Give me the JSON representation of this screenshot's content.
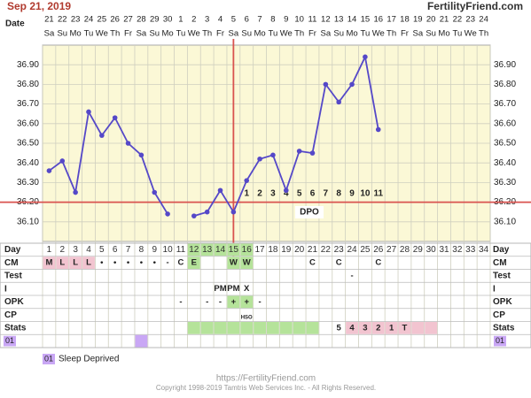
{
  "header": {
    "date": "Sep 21, 2019",
    "site": "FertilityFriend.com"
  },
  "chart_data": {
    "type": "line",
    "date_label": "Date",
    "dates": [
      21,
      22,
      23,
      24,
      25,
      26,
      27,
      28,
      29,
      30,
      1,
      2,
      3,
      4,
      5,
      6,
      7,
      8,
      9,
      10,
      11,
      12,
      13,
      14,
      15,
      16,
      17,
      18,
      19,
      20,
      21,
      22,
      23,
      24
    ],
    "weekdays": [
      "Sa",
      "Su",
      "Mo",
      "Tu",
      "We",
      "Th",
      "Fr",
      "Sa",
      "Su",
      "Mo",
      "Tu",
      "We",
      "Th",
      "Fr",
      "Sa",
      "Su",
      "Mo",
      "Tu",
      "We",
      "Th",
      "Fr",
      "Sa",
      "Su",
      "Mo",
      "Tu",
      "We",
      "Th",
      "Fr",
      "Sa",
      "Su",
      "Mo",
      "Tu",
      "We",
      "Th"
    ],
    "series": [
      {
        "color": "#5548c8",
        "values": [
          36.36,
          36.41,
          36.25,
          36.66,
          36.54,
          36.63,
          36.5,
          36.44,
          36.25,
          36.14,
          null,
          36.13,
          36.15,
          36.26,
          36.15,
          36.31,
          36.42,
          36.44,
          36.26,
          36.46,
          36.45,
          36.8,
          36.71,
          36.8,
          36.94,
          36.57,
          null,
          null,
          null,
          null,
          null,
          null,
          null,
          null
        ]
      }
    ],
    "ylim": [
      36.0,
      37.0
    ],
    "yticks": [
      {
        "value": 36.1,
        "label": "36.10"
      },
      {
        "value": 36.2,
        "label": "36.20"
      },
      {
        "value": 36.3,
        "label": "36.30"
      },
      {
        "value": 36.4,
        "label": "36.40"
      },
      {
        "value": 36.5,
        "label": "36.50"
      },
      {
        "value": 36.6,
        "label": "36.60"
      },
      {
        "value": 36.7,
        "label": "36.70"
      },
      {
        "value": 36.8,
        "label": "36.80"
      },
      {
        "value": 36.9,
        "label": "36.90"
      }
    ],
    "coverline": 36.2,
    "ovulation_day": 15,
    "dpo": [
      null,
      null,
      null,
      null,
      null,
      null,
      null,
      null,
      null,
      null,
      null,
      null,
      null,
      null,
      null,
      1,
      2,
      3,
      4,
      5,
      6,
      7,
      8,
      9,
      10,
      11,
      null,
      null,
      null,
      null,
      null,
      null,
      null,
      null
    ],
    "dpo_title": "DPO"
  },
  "table": {
    "rows": [
      {
        "label": "Day",
        "cells": [
          1,
          2,
          3,
          4,
          5,
          6,
          7,
          8,
          9,
          10,
          11,
          12,
          13,
          14,
          15,
          16,
          17,
          18,
          19,
          20,
          21,
          22,
          23,
          24,
          25,
          26,
          27,
          28,
          29,
          30,
          31,
          32,
          33,
          34
        ],
        "fills": [
          null,
          null,
          null,
          null,
          null,
          null,
          null,
          null,
          null,
          null,
          null,
          "#b5e39a",
          "#b5e39a",
          "#b5e39a",
          "#b5e39a",
          "#b5e39a",
          null,
          null,
          null,
          null,
          null,
          null,
          null,
          null,
          null,
          null,
          null,
          null,
          null,
          null,
          null,
          null,
          null,
          null
        ]
      },
      {
        "label": "CM",
        "cells": [
          "M",
          "L",
          "L",
          "L",
          "•",
          "•",
          "•",
          "•",
          "•",
          "-",
          "C",
          "E",
          null,
          null,
          "W",
          "W",
          null,
          null,
          null,
          null,
          "C",
          null,
          "C",
          null,
          null,
          "C",
          null,
          null,
          null,
          null,
          null,
          null,
          null,
          null
        ],
        "fills": [
          "#f2c4d0",
          "#f2c4d0",
          "#f2c4d0",
          "#f2c4d0",
          null,
          null,
          null,
          null,
          null,
          null,
          null,
          "#b5e39a",
          null,
          null,
          "#b5e39a",
          "#b5e39a",
          null,
          null,
          null,
          null,
          null,
          null,
          null,
          null,
          null,
          null,
          null,
          null,
          null,
          null,
          null,
          null,
          null,
          null
        ]
      },
      {
        "label": "Test",
        "cells": [
          null,
          null,
          null,
          null,
          null,
          null,
          null,
          null,
          null,
          null,
          null,
          null,
          null,
          null,
          null,
          null,
          null,
          null,
          null,
          null,
          null,
          null,
          null,
          "-",
          null,
          null,
          null,
          null,
          null,
          null,
          null,
          null,
          null,
          null
        ]
      },
      {
        "label": "I",
        "cells": [
          null,
          null,
          null,
          null,
          null,
          null,
          null,
          null,
          null,
          null,
          null,
          null,
          null,
          "PM",
          "PM",
          "X",
          null,
          null,
          null,
          null,
          null,
          null,
          null,
          null,
          null,
          null,
          null,
          null,
          null,
          null,
          null,
          null,
          null,
          null
        ]
      },
      {
        "label": "OPK",
        "cells": [
          null,
          null,
          null,
          null,
          null,
          null,
          null,
          null,
          null,
          null,
          "-",
          null,
          "-",
          "-",
          "+",
          "+",
          "-",
          null,
          null,
          null,
          null,
          null,
          null,
          null,
          null,
          null,
          null,
          null,
          null,
          null,
          null,
          null,
          null,
          null
        ],
        "fills": [
          null,
          null,
          null,
          null,
          null,
          null,
          null,
          null,
          null,
          null,
          null,
          null,
          null,
          null,
          "#b5e39a",
          "#b5e39a",
          null,
          null,
          null,
          null,
          null,
          null,
          null,
          null,
          null,
          null,
          null,
          null,
          null,
          null,
          null,
          null,
          null,
          null
        ]
      },
      {
        "label": "CP",
        "cells": [
          null,
          null,
          null,
          null,
          null,
          null,
          null,
          null,
          null,
          null,
          null,
          null,
          null,
          null,
          null,
          "HSO",
          null,
          null,
          null,
          null,
          null,
          null,
          null,
          null,
          null,
          null,
          null,
          null,
          null,
          null,
          null,
          null,
          null,
          null
        ]
      },
      {
        "label": "Stats",
        "cells": [
          null,
          null,
          null,
          null,
          null,
          null,
          null,
          null,
          null,
          null,
          null,
          null,
          null,
          null,
          null,
          null,
          null,
          null,
          null,
          null,
          null,
          null,
          "5",
          "4",
          "3",
          "2",
          "1",
          "T",
          null,
          null,
          null,
          null,
          null,
          null
        ],
        "fills": [
          null,
          null,
          null,
          null,
          null,
          null,
          null,
          null,
          null,
          null,
          null,
          "#b5e39a",
          "#b5e39a",
          "#b5e39a",
          "#b5e39a",
          "#b5e39a",
          "#b5e39a",
          "#b5e39a",
          "#b5e39a",
          "#b5e39a",
          "#b5e39a",
          null,
          null,
          "#f2c4d0",
          "#f2c4d0",
          "#f2c4d0",
          "#f2c4d0",
          "#f2c4d0",
          "#f2c4d0",
          "#f2c4d0",
          null,
          null,
          null,
          null
        ]
      },
      {
        "label": "01",
        "fills": [
          null,
          null,
          null,
          null,
          null,
          null,
          null,
          "#c9a7f5",
          null,
          null,
          null,
          null,
          null,
          null,
          null,
          null,
          null,
          null,
          null,
          null,
          null,
          null,
          null,
          null,
          null,
          null,
          null,
          null,
          null,
          null,
          null,
          null,
          null,
          null
        ]
      }
    ]
  },
  "legend": {
    "code": "01",
    "text": "Sleep Deprived"
  },
  "footer": {
    "url": "https://FertilityFriend.com",
    "copyright": "Copyright 1998-2019 Tamtris Web Services Inc. - All Rights Reserved."
  }
}
